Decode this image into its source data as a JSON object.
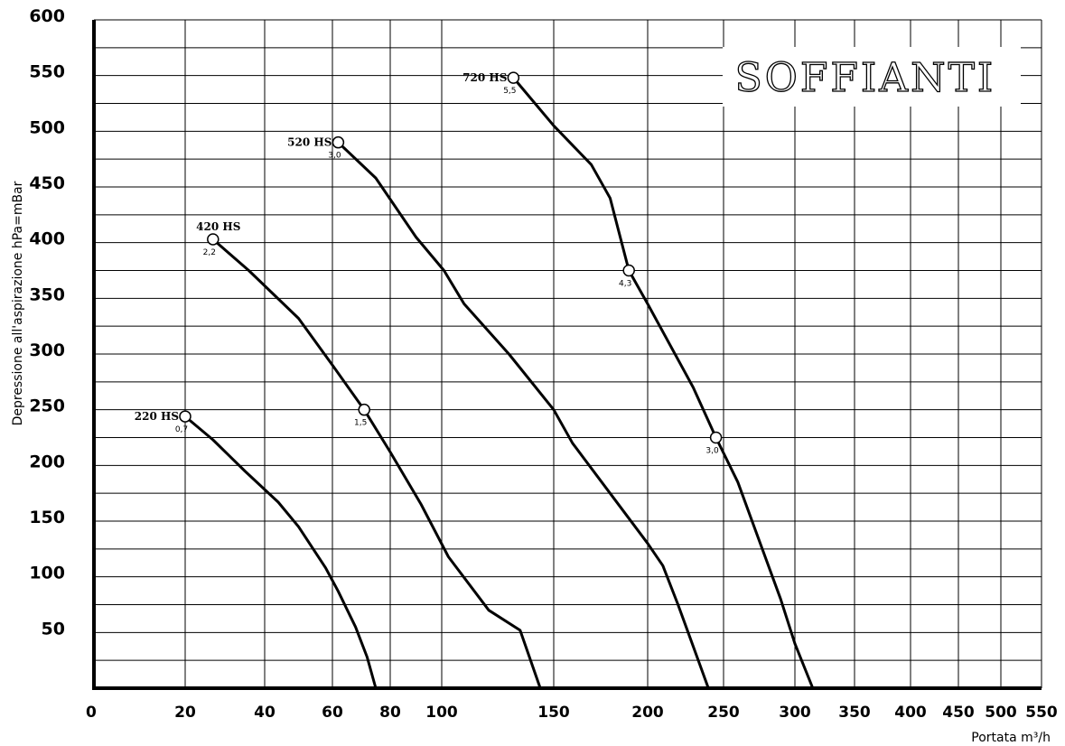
{
  "chart_data": {
    "type": "line",
    "brand_text": "SOFFIANTI",
    "ylabel": "Depressione all'aspirazione hPa=mBar",
    "xlabel": "Portata m³/h",
    "ylim": [
      0,
      600
    ],
    "y_ticks": [
      "600",
      "550",
      "500",
      "450",
      "400",
      "350",
      "300",
      "250",
      "200",
      "150",
      "100",
      "50"
    ],
    "y_tick_values": [
      600,
      550,
      500,
      450,
      400,
      350,
      300,
      250,
      200,
      150,
      100,
      50
    ],
    "x_ticks": [
      "0",
      "20",
      "40",
      "60",
      "80",
      "100",
      "150",
      "200",
      "250",
      "300",
      "350",
      "400",
      "450",
      "500",
      "550"
    ],
    "grid": true,
    "series": [
      {
        "name": "220 HS",
        "points": [
          [
            20,
            244
          ],
          [
            27,
            223
          ],
          [
            35,
            195
          ],
          [
            44,
            167
          ],
          [
            50,
            145
          ],
          [
            58,
            108
          ],
          [
            62,
            87
          ],
          [
            68,
            55
          ],
          [
            72,
            28
          ],
          [
            75,
            0
          ]
        ],
        "markers": [
          {
            "x": 20,
            "y": 244,
            "label": "0,7"
          }
        ]
      },
      {
        "name": "420 HS",
        "points": [
          [
            27,
            403
          ],
          [
            36,
            375
          ],
          [
            50,
            332
          ],
          [
            60,
            290
          ],
          [
            71,
            250
          ],
          [
            80,
            212
          ],
          [
            92,
            165
          ],
          [
            103,
            118
          ],
          [
            121,
            70
          ],
          [
            135,
            52
          ],
          [
            144,
            0
          ]
        ],
        "markers": [
          {
            "x": 27,
            "y": 403,
            "label": "2,2"
          },
          {
            "x": 71,
            "y": 250,
            "label": "1,5"
          }
        ]
      },
      {
        "name": "520 HS",
        "points": [
          [
            62,
            490
          ],
          [
            75,
            458
          ],
          [
            90,
            405
          ],
          [
            101,
            375
          ],
          [
            110,
            345
          ],
          [
            130,
            300
          ],
          [
            150,
            250
          ],
          [
            160,
            220
          ],
          [
            180,
            175
          ],
          [
            200,
            130
          ],
          [
            210,
            110
          ],
          [
            220,
            75
          ],
          [
            232,
            30
          ],
          [
            240,
            0
          ]
        ],
        "markers": [
          {
            "x": 62,
            "y": 490,
            "label": "3,0"
          }
        ]
      },
      {
        "name": "720 HS",
        "points": [
          [
            132,
            548
          ],
          [
            150,
            505
          ],
          [
            170,
            470
          ],
          [
            180,
            440
          ],
          [
            190,
            375
          ],
          [
            200,
            345
          ],
          [
            230,
            270
          ],
          [
            245,
            225
          ],
          [
            260,
            185
          ],
          [
            270,
            150
          ],
          [
            290,
            80
          ],
          [
            300,
            40
          ],
          [
            315,
            0
          ]
        ],
        "markers": [
          {
            "x": 132,
            "y": 548,
            "label": "5,5"
          },
          {
            "x": 190,
            "y": 375,
            "label": "4,3"
          },
          {
            "x": 245,
            "y": 225,
            "label": "3,0"
          }
        ]
      }
    ]
  }
}
